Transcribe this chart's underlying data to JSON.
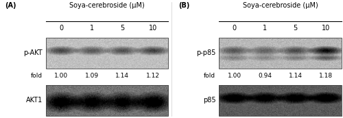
{
  "panel_A": {
    "label": "(A)",
    "title": "Soya-cerebroside (μM)",
    "concentrations": [
      "0",
      "1",
      "5",
      "10"
    ],
    "blot1_label": "p-AKT",
    "blot2_label": "AKT1",
    "fold_label": "fold",
    "fold_values": [
      "1.00",
      "1.09",
      "1.14",
      "1.12"
    ],
    "blot1_bg_color": 0.75,
    "blot2_bg_color": 0.45,
    "blot1_band_strengths": [
      0.55,
      0.48,
      0.5,
      0.58
    ],
    "blot2_band_strengths": [
      0.85,
      0.82,
      0.78,
      0.88
    ],
    "blot2_band_wide": true
  },
  "panel_B": {
    "label": "(B)",
    "title": "Soya-cerebroside (μM)",
    "concentrations": [
      "0",
      "1",
      "5",
      "10"
    ],
    "blot1_label": "p-p85",
    "blot2_label": "p85",
    "fold_label": "fold",
    "fold_values": [
      "1.00",
      "0.94",
      "1.14",
      "1.18"
    ],
    "blot1_bg_color": 0.72,
    "blot2_bg_color": 0.35,
    "blot1_band_strengths": [
      0.45,
      0.4,
      0.5,
      0.8
    ],
    "blot2_band_strengths": [
      0.7,
      0.65,
      0.68,
      0.72
    ],
    "blot2_band_wide": false
  },
  "figure_bg": "#ffffff",
  "text_color": "#000000",
  "title_fontsize": 7.0,
  "label_fontsize": 7.0,
  "fold_fontsize": 6.5,
  "conc_fontsize": 7.0,
  "blot_border_color": "#444444"
}
